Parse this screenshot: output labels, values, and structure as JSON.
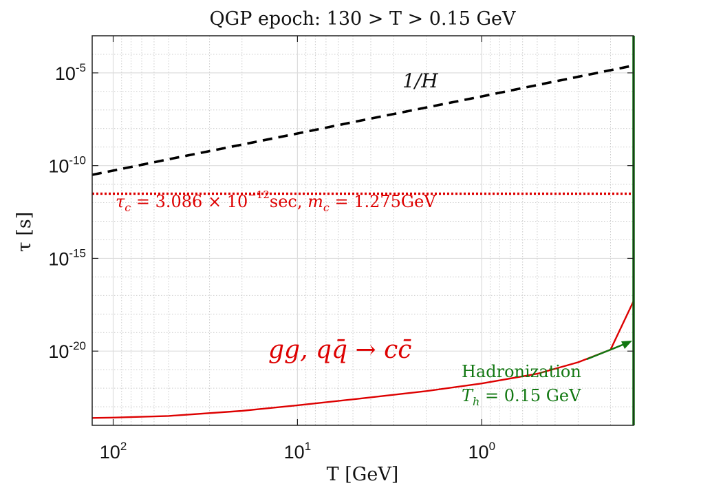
{
  "chart_data": {
    "type": "line",
    "title": "QGP epoch: 130 > T > 0.15 GeV",
    "xlabel": "T [GeV]",
    "ylabel": "τ [s]",
    "x_scale": "log",
    "x_reversed": true,
    "y_scale": "log",
    "xlim": [
      130,
      0.15
    ],
    "ylim": [
      1e-24,
      0.001
    ],
    "x_ticks": [
      {
        "value": 100,
        "base": "10",
        "exp": "2"
      },
      {
        "value": 10,
        "base": "10",
        "exp": "1"
      },
      {
        "value": 1,
        "base": "10",
        "exp": "0"
      }
    ],
    "y_ticks": [
      {
        "value": 1e-05,
        "base": "10",
        "exp": "-5"
      },
      {
        "value": 1e-10,
        "base": "10",
        "exp": "-10"
      },
      {
        "value": 1e-15,
        "base": "10",
        "exp": "-15"
      },
      {
        "value": 1e-20,
        "base": "10",
        "exp": "-20"
      }
    ],
    "grid": true,
    "series": [
      {
        "name": "1/H",
        "style": "dashed",
        "color": "#000000",
        "x": [
          130,
          100,
          50,
          10,
          5,
          1,
          0.5,
          0.15
        ],
        "y": [
          3.2e-11,
          5.4e-11,
          2.2e-10,
          5.4e-09,
          2.2e-08,
          5.4e-07,
          2.2e-06,
          2.5e-05
        ]
      },
      {
        "name": "τ_c = 3.086 × 10^-12 sec, m_c = 1.275GeV",
        "style": "dotted",
        "color": "#dd0000",
        "x": [
          130,
          0.15
        ],
        "y": [
          3.086e-12,
          3.086e-12
        ]
      },
      {
        "name": "gg, qq̄ → cc̄",
        "style": "solid",
        "color": "#dd0000",
        "x": [
          130,
          100,
          50,
          20,
          10,
          5,
          2,
          1,
          0.5,
          0.3,
          0.2,
          0.15
        ],
        "y": [
          2.5e-24,
          2.6e-24,
          3.2e-24,
          6e-24,
          1.2e-23,
          2.5e-23,
          7e-23,
          1.8e-22,
          6e-22,
          2.5e-21,
          1.2e-20,
          5e-18
        ]
      },
      {
        "name": "Hadronization",
        "style": "solid",
        "color": "#117711",
        "x": [
          0.15,
          0.15
        ],
        "y": [
          1e-24,
          0.001
        ]
      }
    ],
    "annotations": {
      "hubble_label": "1/H",
      "charm_label_1": "τ",
      "charm_label_2": "c",
      "charm_label_3": " = 3.086 × 10",
      "charm_label_4": "−12",
      "charm_label_5": "sec, ",
      "charm_label_6": "m",
      "charm_label_7": "c",
      "charm_label_8": " = 1.275GeV",
      "process_label": "gg, qq̄ → cc̄",
      "hadron_label_1": "Hadronization",
      "hadron_label_2": "T",
      "hadron_label_3": "h",
      "hadron_label_4": " = 0.15 GeV"
    },
    "colors": {
      "charm": "#dd0000",
      "hadron": "#117711",
      "hubble": "#000000"
    }
  }
}
